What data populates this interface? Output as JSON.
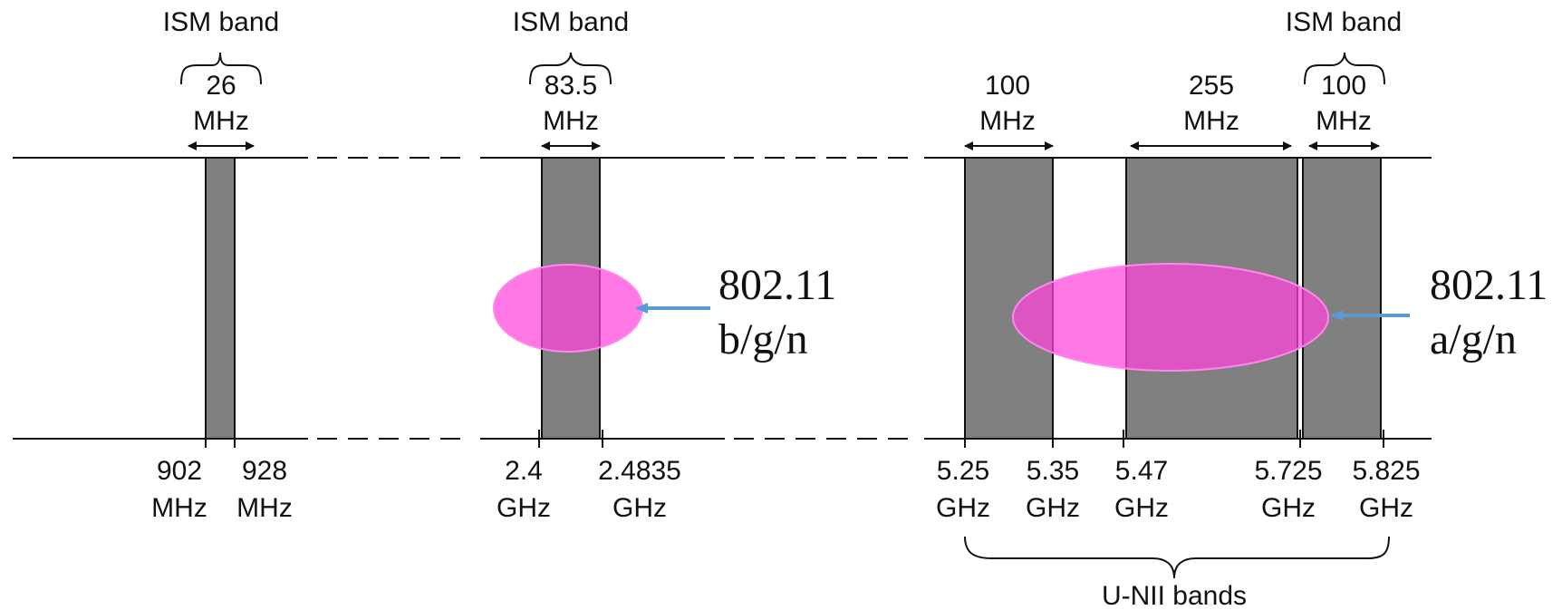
{
  "ism_labels": {
    "band_902": "ISM band",
    "band_24": "ISM band",
    "band_5725": "ISM band"
  },
  "widths": {
    "w_902": [
      "26",
      "MHz"
    ],
    "w_24": [
      "83.5",
      "MHz"
    ],
    "w_525": [
      "100",
      "MHz"
    ],
    "w_547": [
      "255",
      "MHz"
    ],
    "w_5725": [
      "100",
      "MHz"
    ]
  },
  "ticks": {
    "t902": [
      "902",
      "MHz"
    ],
    "t928": [
      "928",
      "MHz"
    ],
    "t24": [
      "2.4",
      "GHz"
    ],
    "t24835": [
      "2.4835",
      "GHz"
    ],
    "t525": [
      "5.25",
      "GHz"
    ],
    "t535": [
      "5.35",
      "GHz"
    ],
    "t547": [
      "5.47",
      "GHz"
    ],
    "t5725": [
      "5.725",
      "GHz"
    ],
    "t5825": [
      "5.825",
      "GHz"
    ]
  },
  "unii_label": "U-NII bands",
  "standards": {
    "bgn": [
      "802.11",
      "b/g/n"
    ],
    "agn": [
      "802.11",
      "a/g/n"
    ]
  },
  "colors": {
    "band_fill": "#808080",
    "ellipse_fill": "#ff44dd",
    "arrow": "#5b9bd5"
  }
}
